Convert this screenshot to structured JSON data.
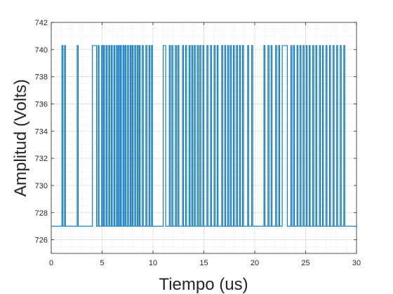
{
  "chart_data": {
    "type": "line",
    "title": "",
    "xlabel": "Tiempo (us)",
    "ylabel": "Amplitud (Volts)",
    "xlim": [
      0,
      30
    ],
    "ylim": [
      725,
      742
    ],
    "xticks": [
      "0",
      "5",
      "10",
      "15",
      "20",
      "25",
      "30"
    ],
    "yticks": [
      "726",
      "728",
      "730",
      "732",
      "734",
      "736",
      "738",
      "740",
      "742"
    ],
    "grid": true,
    "minor_grid": true,
    "series_color": "#0072BD",
    "series": [
      {
        "low_level": 727,
        "high_level": 740.3,
        "high_pulses": [
          [
            1.05,
            1.15
          ],
          [
            1.3,
            1.4
          ],
          [
            2.55,
            2.65
          ],
          [
            4.05,
            4.45
          ],
          [
            4.6,
            4.7
          ],
          [
            4.95,
            5.05
          ],
          [
            5.15,
            5.25
          ],
          [
            5.4,
            5.5
          ],
          [
            5.65,
            5.75
          ],
          [
            5.9,
            6.0
          ],
          [
            6.15,
            6.25
          ],
          [
            6.4,
            6.5
          ],
          [
            6.6,
            6.7
          ],
          [
            6.8,
            6.9
          ],
          [
            7.05,
            7.15
          ],
          [
            7.25,
            7.35
          ],
          [
            7.5,
            7.6
          ],
          [
            7.75,
            7.85
          ],
          [
            7.95,
            8.05
          ],
          [
            8.2,
            8.3
          ],
          [
            8.45,
            8.55
          ],
          [
            8.65,
            8.75
          ],
          [
            8.95,
            9.05
          ],
          [
            9.3,
            9.4
          ],
          [
            9.6,
            9.7
          ],
          [
            9.85,
            9.95
          ],
          [
            11.0,
            11.25
          ],
          [
            11.6,
            11.7
          ],
          [
            11.85,
            11.95
          ],
          [
            12.2,
            12.3
          ],
          [
            12.45,
            12.55
          ],
          [
            12.9,
            13.0
          ],
          [
            13.2,
            13.3
          ],
          [
            13.55,
            13.65
          ],
          [
            13.8,
            13.9
          ],
          [
            14.05,
            14.15
          ],
          [
            14.35,
            14.45
          ],
          [
            14.6,
            14.7
          ],
          [
            14.9,
            15.0
          ],
          [
            15.3,
            15.4
          ],
          [
            15.65,
            15.75
          ],
          [
            16.0,
            16.1
          ],
          [
            16.3,
            16.4
          ],
          [
            16.75,
            16.85
          ],
          [
            17.05,
            17.15
          ],
          [
            17.35,
            17.45
          ],
          [
            17.6,
            17.7
          ],
          [
            17.9,
            18.0
          ],
          [
            18.2,
            18.3
          ],
          [
            18.5,
            18.6
          ],
          [
            18.8,
            18.9
          ],
          [
            19.3,
            19.4
          ],
          [
            19.7,
            19.8
          ],
          [
            20.9,
            21.0
          ],
          [
            21.3,
            21.4
          ],
          [
            21.6,
            21.7
          ],
          [
            22.05,
            22.15
          ],
          [
            22.35,
            22.45
          ],
          [
            22.7,
            23.2
          ],
          [
            23.55,
            23.65
          ],
          [
            23.8,
            23.9
          ],
          [
            24.15,
            24.25
          ],
          [
            24.45,
            24.55
          ],
          [
            24.75,
            24.85
          ],
          [
            25.05,
            25.15
          ],
          [
            25.35,
            25.45
          ],
          [
            25.7,
            25.8
          ],
          [
            26.0,
            26.1
          ],
          [
            26.35,
            26.45
          ],
          [
            26.65,
            26.75
          ],
          [
            27.0,
            27.1
          ],
          [
            27.35,
            27.45
          ],
          [
            27.7,
            27.8
          ],
          [
            28.05,
            28.15
          ],
          [
            28.4,
            28.5
          ],
          [
            28.75,
            28.85
          ]
        ]
      }
    ]
  }
}
